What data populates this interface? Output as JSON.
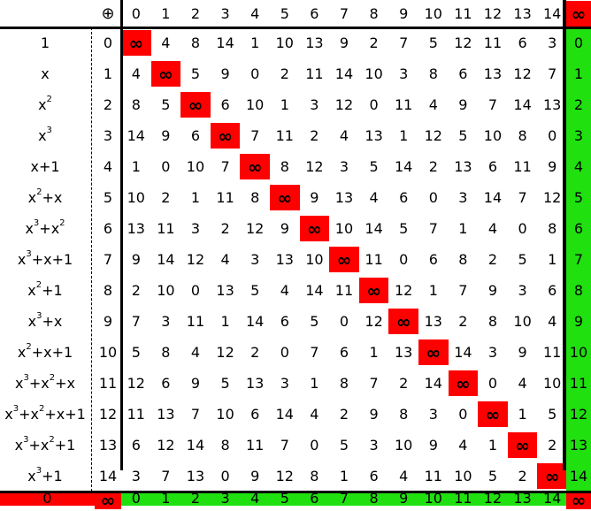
{
  "operator_symbol": "⊕",
  "infinity_symbol": "∞",
  "column_headers": [
    "0",
    "1",
    "2",
    "3",
    "4",
    "5",
    "6",
    "7",
    "8",
    "9",
    "10",
    "11",
    "12",
    "13",
    "14"
  ],
  "rows": [
    {
      "label": "1",
      "index": "0",
      "values": [
        "∞",
        "4",
        "8",
        "14",
        "1",
        "10",
        "13",
        "9",
        "2",
        "7",
        "5",
        "12",
        "11",
        "6",
        "3"
      ],
      "result": "0"
    },
    {
      "label": "x",
      "index": "1",
      "values": [
        "4",
        "∞",
        "5",
        "9",
        "0",
        "2",
        "11",
        "14",
        "10",
        "3",
        "8",
        "6",
        "13",
        "12",
        "7"
      ],
      "result": "1"
    },
    {
      "label": "x^2",
      "index": "2",
      "values": [
        "8",
        "5",
        "∞",
        "6",
        "10",
        "1",
        "3",
        "12",
        "0",
        "11",
        "4",
        "9",
        "7",
        "14",
        "13"
      ],
      "result": "2"
    },
    {
      "label": "x^3",
      "index": "3",
      "values": [
        "14",
        "9",
        "6",
        "∞",
        "7",
        "11",
        "2",
        "4",
        "13",
        "1",
        "12",
        "5",
        "10",
        "8",
        "0"
      ],
      "result": "3"
    },
    {
      "label": "x+1",
      "index": "4",
      "values": [
        "1",
        "0",
        "10",
        "7",
        "∞",
        "8",
        "12",
        "3",
        "5",
        "14",
        "2",
        "13",
        "6",
        "11",
        "9"
      ],
      "result": "4"
    },
    {
      "label": "x^2+x",
      "index": "5",
      "values": [
        "10",
        "2",
        "1",
        "11",
        "8",
        "∞",
        "9",
        "13",
        "4",
        "6",
        "0",
        "3",
        "14",
        "7",
        "12"
      ],
      "result": "5"
    },
    {
      "label": "x^3+x^2",
      "index": "6",
      "values": [
        "13",
        "11",
        "3",
        "2",
        "12",
        "9",
        "∞",
        "10",
        "14",
        "5",
        "7",
        "1",
        "4",
        "0",
        "8"
      ],
      "result": "6"
    },
    {
      "label": "x^3+x+1",
      "index": "7",
      "values": [
        "9",
        "14",
        "12",
        "4",
        "3",
        "13",
        "10",
        "∞",
        "11",
        "0",
        "6",
        "8",
        "2",
        "5",
        "1"
      ],
      "result": "7"
    },
    {
      "label": "x^2+1",
      "index": "8",
      "values": [
        "2",
        "10",
        "0",
        "13",
        "5",
        "4",
        "14",
        "11",
        "∞",
        "12",
        "1",
        "7",
        "9",
        "3",
        "6"
      ],
      "result": "8"
    },
    {
      "label": "x^3+x",
      "index": "9",
      "values": [
        "7",
        "3",
        "11",
        "1",
        "14",
        "6",
        "5",
        "0",
        "12",
        "∞",
        "13",
        "2",
        "8",
        "10",
        "4"
      ],
      "result": "9"
    },
    {
      "label": "x^2+x+1",
      "index": "10",
      "values": [
        "5",
        "8",
        "4",
        "12",
        "2",
        "0",
        "7",
        "6",
        "1",
        "13",
        "∞",
        "14",
        "3",
        "9",
        "11"
      ],
      "result": "10"
    },
    {
      "label": "x^3+x^2+x",
      "index": "11",
      "values": [
        "12",
        "6",
        "9",
        "5",
        "13",
        "3",
        "1",
        "8",
        "7",
        "2",
        "14",
        "∞",
        "0",
        "4",
        "10"
      ],
      "result": "11"
    },
    {
      "label": "x^3+x^2+x+1",
      "index": "12",
      "values": [
        "11",
        "13",
        "7",
        "10",
        "6",
        "14",
        "4",
        "2",
        "9",
        "8",
        "3",
        "0",
        "∞",
        "1",
        "5"
      ],
      "result": "12"
    },
    {
      "label": "x^3+x^2+1",
      "index": "13",
      "values": [
        "6",
        "12",
        "14",
        "8",
        "11",
        "7",
        "0",
        "5",
        "3",
        "10",
        "9",
        "4",
        "1",
        "∞",
        "2"
      ],
      "result": "13"
    },
    {
      "label": "x^3+1",
      "index": "14",
      "values": [
        "3",
        "7",
        "13",
        "0",
        "9",
        "12",
        "8",
        "1",
        "6",
        "4",
        "11",
        "10",
        "5",
        "2",
        "∞"
      ],
      "result": "14"
    }
  ],
  "bottom_row": {
    "label": "0",
    "index": "∞",
    "values": [
      "0",
      "1",
      "2",
      "3",
      "4",
      "5",
      "6",
      "7",
      "8",
      "9",
      "10",
      "11",
      "12",
      "13",
      "14"
    ],
    "result": "∞"
  },
  "colors": {
    "red": "#ff0000",
    "green": "#20e010",
    "line": "#000000"
  }
}
